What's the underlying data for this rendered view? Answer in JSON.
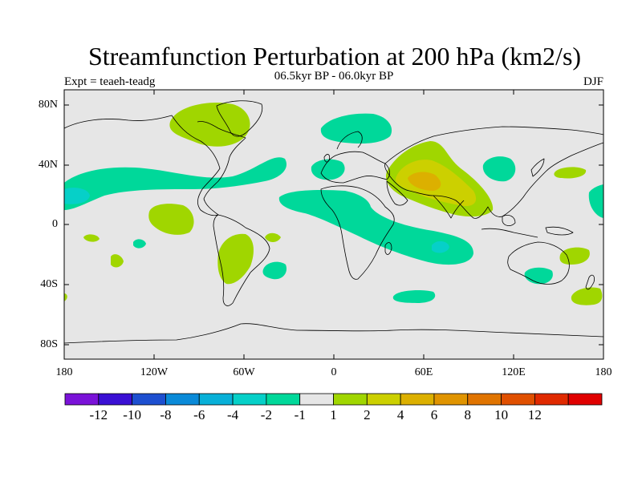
{
  "title": "Streamfunction Perturbation at 200 hPa (km2/s)",
  "subtitle": "06.5kyr BP - 06.0kyr BP",
  "left_label": "Expt = teaeh-teadg",
  "right_label": "DJF",
  "lat_ticks": [
    "80N",
    "40N",
    "0",
    "40S",
    "80S"
  ],
  "lon_ticks": [
    "180",
    "120W",
    "60W",
    "0",
    "60E",
    "120E",
    "180"
  ],
  "colorbar": {
    "colors": [
      "#7a12d8",
      "#3a10d4",
      "#1d4fd0",
      "#0a8ad8",
      "#08b0d8",
      "#06d0c8",
      "#00d89a",
      "#e6e6e6",
      "#a0d600",
      "#ccd000",
      "#dcb000",
      "#e09400",
      "#e07400",
      "#e05000",
      "#e02a00",
      "#e00000"
    ],
    "labels": [
      "-12",
      "-10",
      "-8",
      "-6",
      "-4",
      "-2",
      "-1",
      "1",
      "2",
      "4",
      "6",
      "8",
      "10",
      "12"
    ]
  },
  "colors": {
    "land_background": "#e6e6e6",
    "coast": "#000000"
  }
}
